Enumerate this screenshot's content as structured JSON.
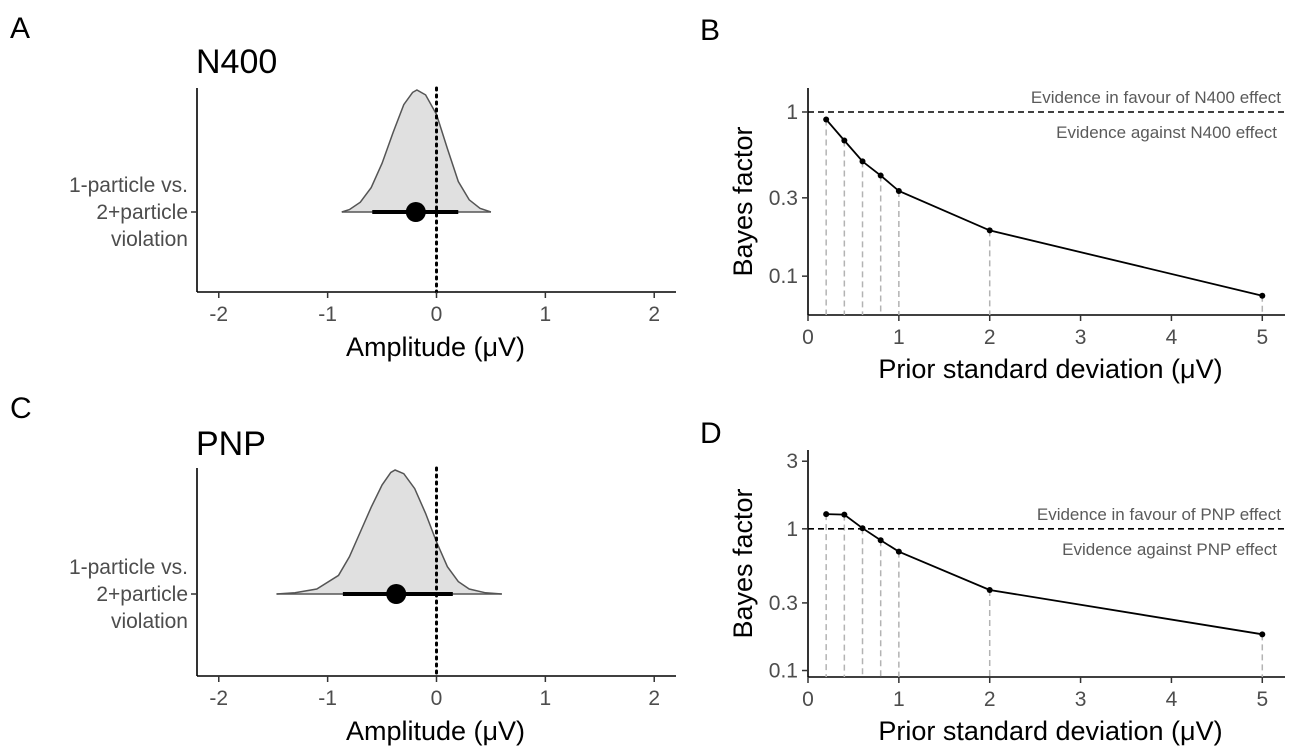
{
  "chart_data": [
    {
      "panel": "A",
      "type": "density",
      "title": "N400",
      "xlabel": "Amplitude (μV)",
      "xlim": [
        -2.2,
        2.2
      ],
      "xticks": [
        -2,
        -1,
        0,
        1,
        2
      ],
      "category": [
        "1-particle vs.",
        "2+particle",
        "violation"
      ],
      "point_estimate": -0.19,
      "interval": [
        -0.59,
        0.2
      ],
      "density_range": [
        -0.87,
        0.5
      ],
      "reference_line": 0,
      "density_points": [
        [
          -0.87,
          0.0
        ],
        [
          -0.8,
          0.02
        ],
        [
          -0.7,
          0.08
        ],
        [
          -0.6,
          0.2
        ],
        [
          -0.5,
          0.4
        ],
        [
          -0.4,
          0.65
        ],
        [
          -0.3,
          0.88
        ],
        [
          -0.22,
          0.98
        ],
        [
          -0.18,
          1.0
        ],
        [
          -0.1,
          0.96
        ],
        [
          0.0,
          0.8
        ],
        [
          0.1,
          0.52
        ],
        [
          0.2,
          0.25
        ],
        [
          0.3,
          0.1
        ],
        [
          0.4,
          0.03
        ],
        [
          0.5,
          0.0
        ]
      ]
    },
    {
      "panel": "B",
      "type": "line",
      "xlabel": "Prior standard deviation (μV)",
      "ylabel": "Bayes factor",
      "xlim": [
        0,
        5.25
      ],
      "xticks": [
        0,
        1,
        2,
        3,
        4,
        5
      ],
      "yscale": "log",
      "ylim": [
        0.058,
        1.4
      ],
      "yticks": [
        0.1,
        0.3,
        1
      ],
      "ytick_labels": [
        "0.1",
        "0.3",
        "1"
      ],
      "x": [
        0.2,
        0.4,
        0.6,
        0.8,
        1,
        2,
        5
      ],
      "y": [
        0.9,
        0.67,
        0.5,
        0.41,
        0.33,
        0.19,
        0.076
      ],
      "hline": 1,
      "annotations": [
        "Evidence in favour of N400 effect",
        "Evidence against N400 effect"
      ]
    },
    {
      "panel": "C",
      "type": "density",
      "title": "PNP",
      "xlabel": "Amplitude (μV)",
      "xlim": [
        -2.2,
        2.2
      ],
      "xticks": [
        -2,
        -1,
        0,
        1,
        2
      ],
      "category": [
        "1-particle vs.",
        "2+particle",
        "violation"
      ],
      "point_estimate": -0.37,
      "interval": [
        -0.86,
        0.15
      ],
      "density_range": [
        -1.47,
        0.6
      ],
      "reference_line": 0,
      "density_points": [
        [
          -1.47,
          0.0
        ],
        [
          -1.3,
          0.01
        ],
        [
          -1.1,
          0.04
        ],
        [
          -0.9,
          0.15
        ],
        [
          -0.8,
          0.3
        ],
        [
          -0.7,
          0.5
        ],
        [
          -0.6,
          0.7
        ],
        [
          -0.5,
          0.88
        ],
        [
          -0.42,
          0.98
        ],
        [
          -0.38,
          1.0
        ],
        [
          -0.3,
          0.97
        ],
        [
          -0.2,
          0.85
        ],
        [
          -0.1,
          0.65
        ],
        [
          0.0,
          0.42
        ],
        [
          0.1,
          0.22
        ],
        [
          0.2,
          0.1
        ],
        [
          0.3,
          0.04
        ],
        [
          0.45,
          0.01
        ],
        [
          0.6,
          0.0
        ]
      ]
    },
    {
      "panel": "D",
      "type": "line",
      "xlabel": "Prior standard deviation (μV)",
      "ylabel": "Bayes factor",
      "xlim": [
        0,
        5.25
      ],
      "xticks": [
        0,
        1,
        2,
        3,
        4,
        5
      ],
      "yscale": "log",
      "ylim": [
        0.09,
        3.6
      ],
      "yticks": [
        0.1,
        0.3,
        1,
        3
      ],
      "ytick_labels": [
        "0.1",
        "0.3",
        "1",
        "3"
      ],
      "x": [
        0.2,
        0.4,
        0.6,
        0.8,
        1,
        2,
        5
      ],
      "y": [
        1.27,
        1.26,
        1.01,
        0.83,
        0.69,
        0.37,
        0.18
      ],
      "hline": 1,
      "annotations": [
        "Evidence in favour of PNP effect",
        "Evidence against PNP effect"
      ]
    }
  ]
}
